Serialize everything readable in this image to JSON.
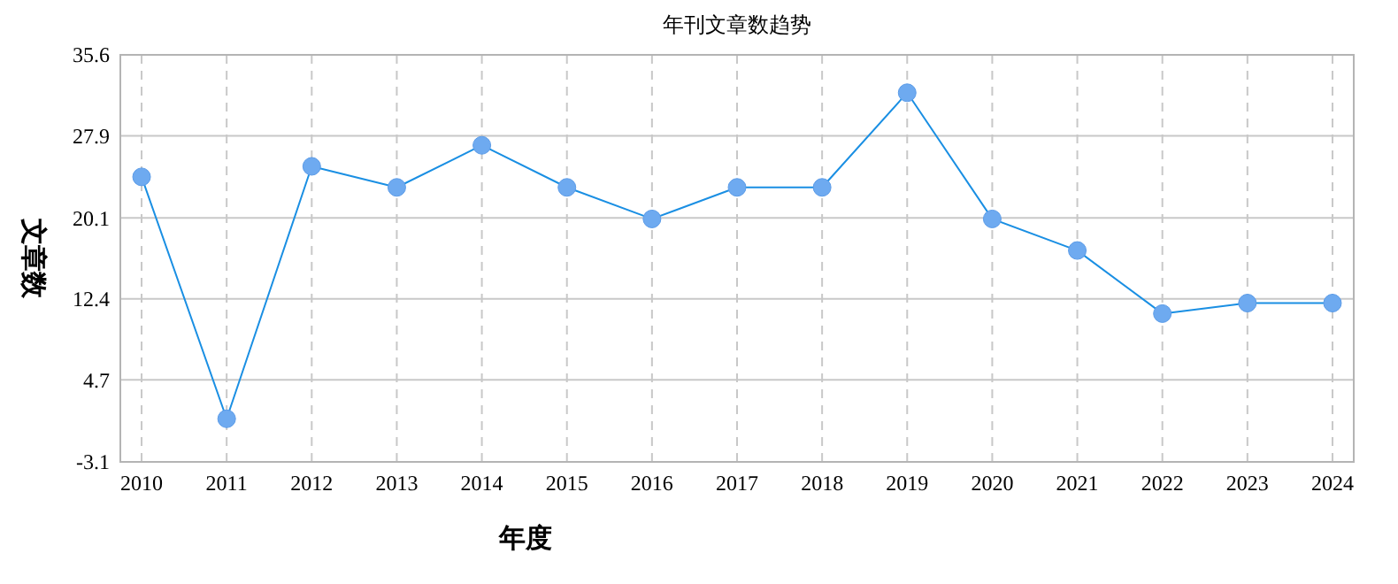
{
  "chart_data": {
    "type": "line",
    "title": "年刊文章数趋势",
    "xlabel": "年度",
    "ylabel": "文章数",
    "categories": [
      "2010",
      "2011",
      "2012",
      "2013",
      "2014",
      "2015",
      "2016",
      "2017",
      "2018",
      "2019",
      "2020",
      "2021",
      "2022",
      "2023",
      "2024"
    ],
    "series": [
      {
        "color": "#1a8fe3",
        "values": [
          24,
          1,
          25,
          23,
          27,
          23,
          20,
          23,
          23,
          32,
          20,
          17,
          11,
          12,
          12
        ]
      }
    ],
    "ylim": [
      -3.1,
      35.6
    ],
    "yticks": [
      -3.1,
      4.7,
      12.4,
      20.1,
      27.9,
      35.6
    ],
    "grid": true,
    "marker": "circle",
    "line_style": "solid"
  }
}
